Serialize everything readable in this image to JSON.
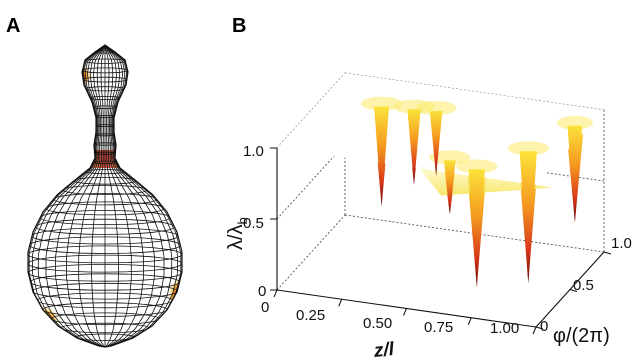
{
  "panels": {
    "a_label": "A",
    "b_label": "B"
  },
  "chart_data": {
    "type": "surface3d",
    "panel": "B",
    "zlabel": "λ/λb",
    "zlabel_main": "λ/λ",
    "zlabel_sub": "b",
    "xlabel": "z/l",
    "ylabel": "φ/(2π)",
    "xlim": [
      0,
      1.0
    ],
    "ylim": [
      0,
      1.0
    ],
    "zlim": [
      0,
      1.0
    ],
    "x_ticks": [
      "0",
      "0.25",
      "0.50",
      "0.75",
      "1.00"
    ],
    "x_tick_values": [
      0,
      0.25,
      0.5,
      0.75,
      1.0
    ],
    "y_ticks": [
      "0",
      "0.5",
      "1.0"
    ],
    "y_tick_values": [
      0,
      0.5,
      1.0
    ],
    "z_ticks": [
      "0",
      "0.5",
      "1.0"
    ],
    "z_tick_values": [
      0,
      0.5,
      1.0
    ],
    "surface_max": 1.0,
    "minima": [
      {
        "x": 0.22,
        "y": 0.7,
        "z": 0.28
      },
      {
        "x": 0.34,
        "y": 0.72,
        "z": 0.45
      },
      {
        "x": 0.42,
        "y": 0.74,
        "z": 0.52
      },
      {
        "x": 0.62,
        "y": 0.18,
        "z": 0.6
      },
      {
        "x": 0.74,
        "y": 0.12,
        "z": 0.15
      },
      {
        "x": 0.86,
        "y": 0.42,
        "z": 0.05
      },
      {
        "x": 0.94,
        "y": 0.8,
        "z": 0.3
      }
    ],
    "colormap": [
      "#8b0a0a",
      "#e0441a",
      "#f7a21f",
      "#fbe33a",
      "#ffffff"
    ]
  }
}
